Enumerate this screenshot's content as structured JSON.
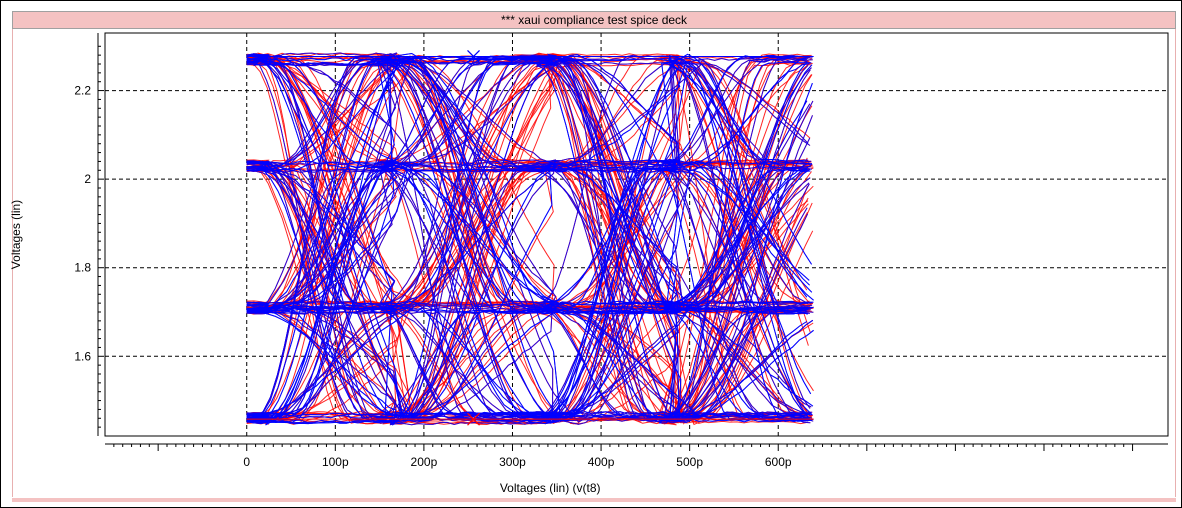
{
  "window": {
    "title": "*** xaui compliance test spice deck"
  },
  "chart_data": {
    "type": "line",
    "description_kind": "eye diagram",
    "xlabel": "Voltages (lin) (v(t8)",
    "ylabel": "Voltages (lin)",
    "xlim": [
      -160,
      1040
    ],
    "ylim": [
      1.42,
      2.33
    ],
    "x_ticks": [
      0,
      100,
      200,
      300,
      400,
      500,
      600
    ],
    "x_tick_labels": [
      "0",
      "100p",
      "200p",
      "300p",
      "400p",
      "500p",
      "600p"
    ],
    "y_ticks": [
      1.6,
      1.8,
      2.0,
      2.2
    ],
    "y_tick_labels": [
      "1.6",
      "1.8",
      "2",
      "2.2"
    ],
    "grid": true,
    "grid_style": "dashed",
    "x_units": "ps",
    "x_data_range": [
      0,
      640
    ],
    "unit_interval": 320,
    "series": [
      {
        "color": "#ff0000",
        "levels": [
          1.46,
          1.71,
          2.03,
          2.27
        ],
        "crossing_times": [
          30,
          170,
          350,
          490,
          670
        ]
      },
      {
        "color": "#0000ff",
        "levels": [
          1.46,
          1.71,
          2.03,
          2.27
        ],
        "crossing_times": [
          30,
          170,
          350,
          490,
          670
        ]
      }
    ],
    "markers": [
      {
        "x": 256,
        "y": 2.277,
        "color": "#0000ff",
        "symbol": "x"
      },
      {
        "x": 256,
        "y": 1.458,
        "color": "#ff0000",
        "symbol": "x"
      }
    ],
    "reference_lines": [
      {
        "y": 2.277,
        "color": "#0000ff"
      },
      {
        "y": 1.458,
        "color": "#ff0000"
      }
    ]
  }
}
